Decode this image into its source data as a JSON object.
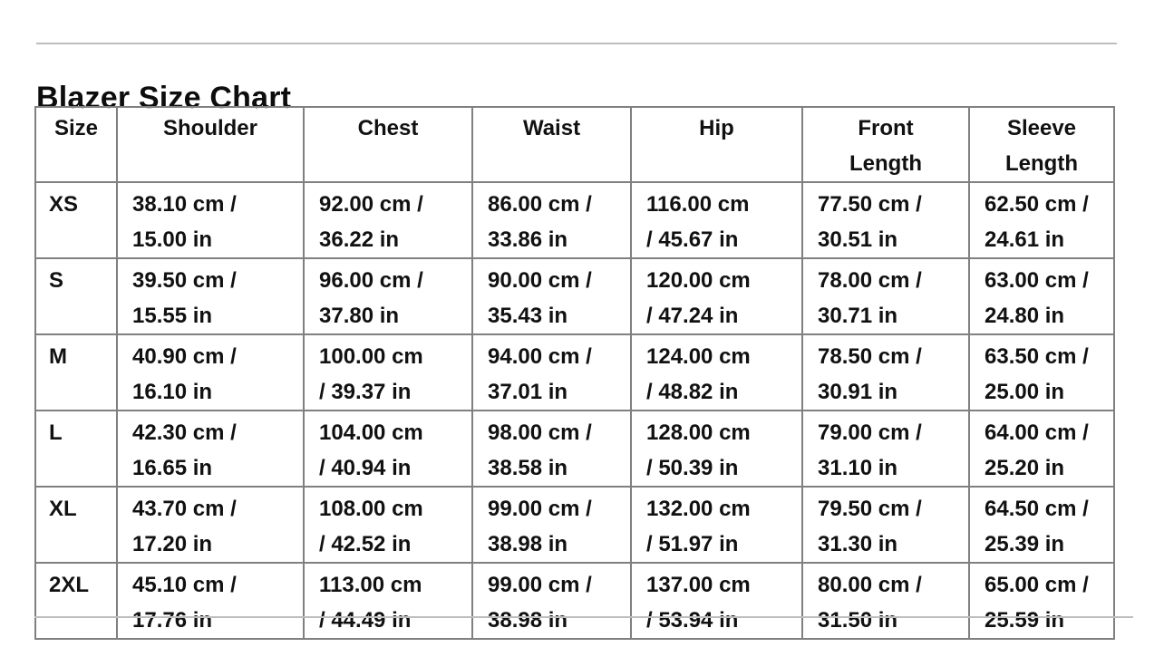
{
  "colors": {
    "table_border": "#808080",
    "divider_rule": "#bdbdbd",
    "text": "#111111",
    "background": "#ffffff"
  },
  "header": {
    "title": "Blazer Size Chart"
  },
  "table": {
    "columns": [
      "Size",
      "Shoulder",
      "Chest",
      "Waist",
      "Hip",
      "Front\nLength",
      "Sleeve\nLength"
    ],
    "rows": [
      {
        "size": "XS",
        "cells": [
          "38.10 cm /\n15.00 in",
          "92.00 cm /\n36.22 in",
          "86.00 cm /\n33.86 in",
          "116.00 cm\n/ 45.67 in",
          "77.50 cm /\n30.51 in",
          "62.50 cm /\n24.61 in"
        ]
      },
      {
        "size": "S",
        "cells": [
          "39.50 cm /\n15.55 in",
          "96.00 cm /\n37.80 in",
          "90.00 cm /\n35.43 in",
          "120.00 cm\n/ 47.24 in",
          "78.00 cm /\n30.71 in",
          "63.00 cm /\n24.80 in"
        ]
      },
      {
        "size": "M",
        "cells": [
          "40.90 cm /\n16.10 in",
          "100.00 cm\n/ 39.37 in",
          "94.00 cm /\n37.01 in",
          "124.00 cm\n/ 48.82 in",
          "78.50 cm /\n30.91 in",
          "63.50 cm /\n25.00 in"
        ]
      },
      {
        "size": "L",
        "cells": [
          "42.30 cm /\n16.65 in",
          "104.00 cm\n/ 40.94 in",
          "98.00 cm /\n38.58 in",
          "128.00 cm\n/ 50.39 in",
          "79.00 cm /\n31.10 in",
          "64.00 cm /\n25.20 in"
        ]
      },
      {
        "size": "XL",
        "cells": [
          "43.70 cm /\n17.20 in",
          "108.00 cm\n/ 42.52 in",
          "99.00 cm /\n38.98 in",
          "132.00 cm\n/ 51.97 in",
          "79.50 cm /\n31.30 in",
          "64.50 cm /\n25.39 in"
        ]
      },
      {
        "size": "2XL",
        "cells": [
          "45.10 cm /\n17.76 in",
          "113.00 cm\n/ 44.49 in",
          "99.00 cm /\n38.98 in",
          "137.00 cm\n/ 53.94 in",
          "80.00 cm /\n31.50 in",
          "65.00 cm /\n25.59 in"
        ]
      }
    ]
  }
}
